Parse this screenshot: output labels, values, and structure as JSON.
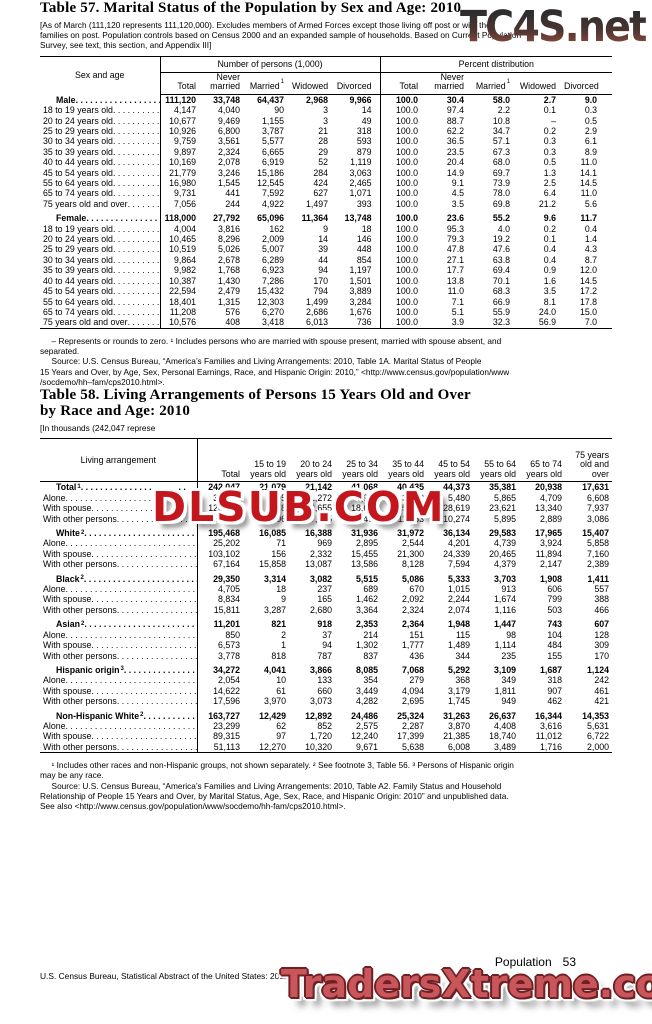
{
  "watermarks": {
    "top": "TC4S.net",
    "middle": "DLSUB.COM",
    "bottom": "TradersXtreme.com",
    "top_gradient": [
      "#2c2c2e",
      "#9c5140"
    ],
    "middle_color": "#c4161d",
    "bottom_color": "#c9565a"
  },
  "table57": {
    "title": "Table 57. Marital Status of the Population by Sex and Age: 2010",
    "note_lines": [
      "[As of March (111,120 represents 111,120,000). Excludes members of Armed Forces except those living off post or with their",
      "families on post. Population controls based on Census 2000 and an expanded sample of households. Based on Current Population",
      "Survey, see text, this section, and Appendix III]"
    ],
    "stub_header": "Sex and age",
    "group1": "Number of persons (1,000)",
    "group2": "Percent distribution",
    "columns": [
      {
        "text": "Total"
      },
      {
        "text": "Never married"
      },
      {
        "text": "Married",
        "sup": "1"
      },
      {
        "text": "Widowed"
      },
      {
        "text": "Divorced"
      },
      {
        "text": "Total"
      },
      {
        "text": "Never married"
      },
      {
        "text": "Married",
        "sup": "1"
      },
      {
        "text": "Widowed"
      },
      {
        "text": "Divorced"
      }
    ],
    "rows": [
      {
        "label": "Male",
        "bold": true,
        "indent": true,
        "values": [
          "111,120",
          "33,748",
          "64,437",
          "2,968",
          "9,966",
          "100.0",
          "30.4",
          "58.0",
          "2.7",
          "9.0"
        ]
      },
      {
        "label": "18 to 19 years old",
        "values": [
          "4,147",
          "4,040",
          "90",
          "3",
          "14",
          "100.0",
          "97.4",
          "2.2",
          "0.1",
          "0.3"
        ]
      },
      {
        "label": "20 to 24 years old",
        "values": [
          "10,677",
          "9,469",
          "1,155",
          "3",
          "49",
          "100.0",
          "88.7",
          "10.8",
          "–",
          "0.5"
        ]
      },
      {
        "label": "25 to 29 years old",
        "values": [
          "10,926",
          "6,800",
          "3,787",
          "21",
          "318",
          "100.0",
          "62.2",
          "34.7",
          "0.2",
          "2.9"
        ]
      },
      {
        "label": "30 to 34 years old",
        "values": [
          "9,759",
          "3,561",
          "5,577",
          "28",
          "593",
          "100.0",
          "36.5",
          "57.1",
          "0.3",
          "6.1"
        ]
      },
      {
        "label": "35 to 39 years old",
        "values": [
          "9,897",
          "2,324",
          "6,665",
          "29",
          "879",
          "100.0",
          "23.5",
          "67.3",
          "0.3",
          "8.9"
        ]
      },
      {
        "label": "40 to 44 years old",
        "values": [
          "10,169",
          "2,078",
          "6,919",
          "52",
          "1,119",
          "100.0",
          "20.4",
          "68.0",
          "0.5",
          "11.0"
        ]
      },
      {
        "label": "45 to 54 years old",
        "values": [
          "21,779",
          "3,246",
          "15,186",
          "284",
          "3,063",
          "100.0",
          "14.9",
          "69.7",
          "1.3",
          "14.1"
        ]
      },
      {
        "label": "55 to 64 years old",
        "values": [
          "16,980",
          "1,545",
          "12,545",
          "424",
          "2,465",
          "100.0",
          "9.1",
          "73.9",
          "2.5",
          "14.5"
        ]
      },
      {
        "label": "65 to 74 years old",
        "values": [
          "9,731",
          "441",
          "7,592",
          "627",
          "1,071",
          "100.0",
          "4.5",
          "78.0",
          "6.4",
          "11.0"
        ]
      },
      {
        "label": "75 years old and over",
        "values": [
          "7,056",
          "244",
          "4,922",
          "1,497",
          "393",
          "100.0",
          "3.5",
          "69.8",
          "21.2",
          "5.6"
        ]
      },
      {
        "label": "Female",
        "bold": true,
        "indent": true,
        "gap": true,
        "values": [
          "118,000",
          "27,792",
          "65,096",
          "11,364",
          "13,748",
          "100.0",
          "23.6",
          "55.2",
          "9.6",
          "11.7"
        ]
      },
      {
        "label": "18 to 19 years old",
        "values": [
          "4,004",
          "3,816",
          "162",
          "9",
          "18",
          "100.0",
          "95.3",
          "4.0",
          "0.2",
          "0.4"
        ]
      },
      {
        "label": "20 to 24 years old",
        "values": [
          "10,465",
          "8,296",
          "2,009",
          "14",
          "146",
          "100.0",
          "79.3",
          "19.2",
          "0.1",
          "1.4"
        ]
      },
      {
        "label": "25 to 29 years old",
        "values": [
          "10,519",
          "5,026",
          "5,007",
          "39",
          "448",
          "100.0",
          "47.8",
          "47.6",
          "0.4",
          "4.3"
        ]
      },
      {
        "label": "30 to 34 years old",
        "values": [
          "9,864",
          "2,678",
          "6,289",
          "44",
          "854",
          "100.0",
          "27.1",
          "63.8",
          "0.4",
          "8.7"
        ]
      },
      {
        "label": "35 to 39 years old",
        "values": [
          "9,982",
          "1,768",
          "6,923",
          "94",
          "1,197",
          "100.0",
          "17.7",
          "69.4",
          "0.9",
          "12.0"
        ]
      },
      {
        "label": "40 to 44 years old",
        "values": [
          "10,387",
          "1,430",
          "7,286",
          "170",
          "1,501",
          "100.0",
          "13.8",
          "70.1",
          "1.6",
          "14.5"
        ]
      },
      {
        "label": "45 to 54 years old",
        "values": [
          "22,594",
          "2,479",
          "15,432",
          "794",
          "3,889",
          "100.0",
          "11.0",
          "68.3",
          "3.5",
          "17.2"
        ]
      },
      {
        "label": "55 to 64 years old",
        "values": [
          "18,401",
          "1,315",
          "12,303",
          "1,499",
          "3,284",
          "100.0",
          "7.1",
          "66.9",
          "8.1",
          "17.8"
        ]
      },
      {
        "label": "65 to 74 years old",
        "values": [
          "11,208",
          "576",
          "6,270",
          "2,686",
          "1,676",
          "100.0",
          "5.1",
          "55.9",
          "24.0",
          "15.0"
        ]
      },
      {
        "label": "75 years old and over",
        "values": [
          "10,576",
          "408",
          "3,418",
          "6,013",
          "736",
          "100.0",
          "3.9",
          "32.3",
          "56.9",
          "7.0"
        ]
      }
    ],
    "footnote_lines": [
      "     – Represents or rounds to zero. ¹ Includes persons who are married with spouse present, married with spouse absent, and",
      "separated.",
      "     Source: U.S. Census Bureau, “America’s Families and Living Arrangements: 2010, Table 1A. Marital Status of People",
      "15 Years and Over, by Age, Sex, Personal Earnings, Race, and Hispanic Origin: 2010,” <http://www.census.gov/population/www",
      "/socdemo/hh–fam/cps2010.html>."
    ]
  },
  "table58": {
    "title_lines": [
      "Table 58. Living Arrangements of Persons 15 Years Old and Over",
      "by Race and Age: 2010"
    ],
    "note_lines": [
      "[In thousands (242,047 represe"
    ],
    "stub_header": "Living arrangement",
    "columns": [
      {
        "text": "Total"
      },
      {
        "text": "15 to 19 years old"
      },
      {
        "text": "20 to 24 years old"
      },
      {
        "text": "25 to 34 years old"
      },
      {
        "text": "35 to 44 years old"
      },
      {
        "text": "45 to 54 years old"
      },
      {
        "text": "55 to 64 years old"
      },
      {
        "text": "65 to 74 years old"
      },
      {
        "text": "75 years old and over"
      }
    ],
    "rows": [
      {
        "label": "Total",
        "sup": "1",
        "bold": true,
        "indent": true,
        "values": [
          "242,047",
          "21,079",
          "21,142",
          "41,068",
          "40,435",
          "44,373",
          "35,381",
          "20,938",
          "17,631"
        ]
      },
      {
        "label": "Alone",
        "values": [
          "31,399",
          "95",
          "1,272",
          "3,917",
          "3,453",
          "5,480",
          "5,865",
          "4,709",
          "6,608"
        ]
      },
      {
        "label": "With spouse",
        "values": [
          "120,768",
          "178",
          "2,655",
          "18,689",
          "25,729",
          "28,619",
          "23,621",
          "13,340",
          "7,937"
        ]
      },
      {
        "label": "With other persons",
        "values": [
          "89,880",
          "20,806",
          "17,215",
          "18,462",
          "11,253",
          "10,274",
          "5,895",
          "2,889",
          "3,086"
        ]
      },
      {
        "label": "White",
        "sup": "2",
        "bold": true,
        "indent": true,
        "gap": true,
        "values": [
          "195,468",
          "16,085",
          "16,388",
          "31,936",
          "31,972",
          "36,134",
          "29,583",
          "17,965",
          "15,407"
        ]
      },
      {
        "label": "Alone",
        "values": [
          "25,202",
          "71",
          "969",
          "2,895",
          "2,544",
          "4,201",
          "4,739",
          "3,924",
          "5,858"
        ]
      },
      {
        "label": "With spouse",
        "values": [
          "103,102",
          "156",
          "2,332",
          "15,455",
          "21,300",
          "24,339",
          "20,465",
          "11,894",
          "7,160"
        ]
      },
      {
        "label": "With other persons",
        "values": [
          "67,164",
          "15,858",
          "13,087",
          "13,586",
          "8,128",
          "7,594",
          "4,379",
          "2,147",
          "2,389"
        ]
      },
      {
        "label": "Black",
        "sup": "2",
        "bold": true,
        "indent": true,
        "gap": true,
        "values": [
          "29,350",
          "3,314",
          "3,082",
          "5,515",
          "5,086",
          "5,333",
          "3,703",
          "1,908",
          "1,411"
        ]
      },
      {
        "label": "Alone",
        "values": [
          "4,705",
          "18",
          "237",
          "689",
          "670",
          "1,015",
          "913",
          "606",
          "557"
        ]
      },
      {
        "label": "With spouse",
        "values": [
          "8,834",
          "9",
          "165",
          "1,462",
          "2,092",
          "2,244",
          "1,674",
          "799",
          "388"
        ]
      },
      {
        "label": "With other persons",
        "values": [
          "15,811",
          "3,287",
          "2,680",
          "3,364",
          "2,324",
          "2,074",
          "1,116",
          "503",
          "466"
        ]
      },
      {
        "label": "Asian",
        "sup": "2",
        "bold": true,
        "indent": true,
        "gap": true,
        "values": [
          "11,201",
          "821",
          "918",
          "2,353",
          "2,364",
          "1,948",
          "1,447",
          "743",
          "607"
        ]
      },
      {
        "label": "Alone",
        "values": [
          "850",
          "2",
          "37",
          "214",
          "151",
          "115",
          "98",
          "104",
          "128"
        ]
      },
      {
        "label": "With spouse",
        "values": [
          "6,573",
          "1",
          "94",
          "1,302",
          "1,777",
          "1,489",
          "1,114",
          "484",
          "309"
        ]
      },
      {
        "label": "With other persons",
        "values": [
          "3,778",
          "818",
          "787",
          "837",
          "436",
          "344",
          "235",
          "155",
          "170"
        ]
      },
      {
        "label": "Hispanic origin",
        "sup": "3",
        "bold": true,
        "indent": true,
        "gap": true,
        "values": [
          "34,272",
          "4,041",
          "3,866",
          "8,085",
          "7,068",
          "5,292",
          "3,109",
          "1,687",
          "1,124"
        ]
      },
      {
        "label": "Alone",
        "values": [
          "2,054",
          "10",
          "133",
          "354",
          "279",
          "368",
          "349",
          "318",
          "242"
        ]
      },
      {
        "label": "With spouse",
        "values": [
          "14,622",
          "61",
          "660",
          "3,449",
          "4,094",
          "3,179",
          "1,811",
          "907",
          "461"
        ]
      },
      {
        "label": "With other persons",
        "values": [
          "17,596",
          "3,970",
          "3,073",
          "4,282",
          "2,695",
          "1,745",
          "949",
          "462",
          "421"
        ]
      },
      {
        "label": "Non-Hispanic White",
        "sup": "2",
        "bold": true,
        "indent": true,
        "gap": true,
        "values": [
          "163,727",
          "12,429",
          "12,892",
          "24,486",
          "25,324",
          "31,263",
          "26,637",
          "16,344",
          "14,353"
        ]
      },
      {
        "label": "Alone",
        "values": [
          "23,299",
          "62",
          "852",
          "2,575",
          "2,287",
          "3,870",
          "4,408",
          "3,616",
          "5,631"
        ]
      },
      {
        "label": "With spouse",
        "values": [
          "89,315",
          "97",
          "1,720",
          "12,240",
          "17,399",
          "21,385",
          "18,740",
          "11,012",
          "6,722"
        ]
      },
      {
        "label": "With other persons",
        "values": [
          "51,113",
          "12,270",
          "10,320",
          "9,671",
          "5,638",
          "6,008",
          "3,489",
          "1,716",
          "2,000"
        ]
      }
    ],
    "footnote_lines": [
      "     ¹ Includes other races and non-Hispanic groups, not shown separately. ² See footnote 3, Table 56. ³ Persons of Hispanic origin",
      "may be any race.",
      "     Source: U.S. Census Bureau, “America’s Families and Living Arrangements: 2010, Table A2. Family Status and Household",
      "Relationship of People 15 Years and Over, by Marital Status, Age, Sex, Race, and Hispanic Origin: 2010” and unpublished data.",
      "See also <http://www.census.gov/population/www/socdemo/hh-fam/cps2010.html>."
    ]
  },
  "footer": {
    "section_label": "Population",
    "page_number": "53",
    "source_line": "U.S. Census Bureau, Statistical Abstract of the United States: 2012"
  }
}
